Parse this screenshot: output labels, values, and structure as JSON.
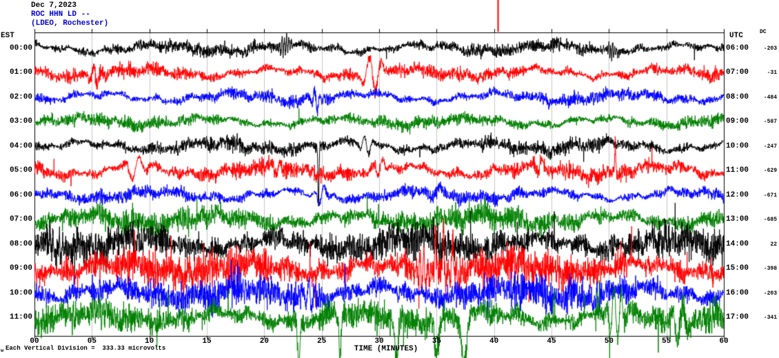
{
  "header": {
    "date": "Dec 7,2023",
    "station": "ROC HHN LD --",
    "network": "(LDEO, Rochester)",
    "date_color": "#000000",
    "station_color": "#0000cc",
    "network_color": "#0000cc"
  },
  "axes": {
    "left_header": "EST",
    "right_header": "UTC",
    "dc_header": "DC",
    "x_label": "TIME (MINUTES)",
    "x_ticks": [
      "00",
      "05",
      "10",
      "15",
      "20",
      "25",
      "30",
      "35",
      "40",
      "45",
      "50",
      "55",
      "60"
    ],
    "x_min": 0,
    "x_max": 60,
    "tick_interval_minutes": 5
  },
  "footer": {
    "mark": "w",
    "note": "Each Vertical Division =  333.33 microvolts"
  },
  "colors": {
    "background": "#ffffff",
    "border": "#000000",
    "grid": "#9a9a9a",
    "marker": "#ff0000"
  },
  "marker": {
    "x_minute": 40.35,
    "color": "#ff0000"
  },
  "chart_data": {
    "type": "line",
    "title": "ROC HHN LD -- (LDEO, Rochester) helicorder, Dec 7,2023",
    "xlabel": "TIME (MINUTES)",
    "x_range": [
      0,
      60
    ],
    "grid": "vertical every 5 minutes",
    "scale_note": "Each Vertical Division =  333.33 microvolts",
    "rows": [
      {
        "est": "00:00",
        "utc": "06:00",
        "dc": "-203",
        "color": "#000000",
        "viz": {
          "hf": 8,
          "lf": 4.5,
          "sp": 0.0008,
          "sa": 14,
          "events": [
            {
              "t": 21.8,
              "w": 0.5,
              "a": 14,
              "f": 5
            },
            {
              "t": 50.2,
              "w": 0.4,
              "a": 12,
              "f": 6
            }
          ]
        }
      },
      {
        "est": "01:00",
        "utc": "07:00",
        "dc": "-31",
        "color": "#ff0000",
        "viz": {
          "hf": 8.5,
          "lf": 5,
          "sp": 0.0008,
          "sa": 14,
          "events": [
            {
              "t": 29.4,
              "w": 0.9,
              "a": 27,
              "f": 0.9
            },
            {
              "t": 5.3,
              "w": 0.5,
              "a": 14,
              "f": 1.5
            }
          ]
        }
      },
      {
        "est": "02:00",
        "utc": "08:00",
        "dc": "-484",
        "color": "#0000ff",
        "viz": {
          "hf": 7.5,
          "lf": 5,
          "sp": 0.0006,
          "sa": 12,
          "events": [
            {
              "t": 24.5,
              "w": 0.4,
              "a": 16,
              "f": 2
            }
          ]
        }
      },
      {
        "est": "03:00",
        "utc": "09:00",
        "dc": "-587",
        "color": "#008000",
        "viz": {
          "hf": 8,
          "lf": 4.5,
          "sp": 0.0015,
          "sa": 16,
          "events": []
        }
      },
      {
        "est": "04:00",
        "utc": "10:00",
        "dc": "-247",
        "color": "#000000",
        "viz": {
          "hf": 9,
          "lf": 5,
          "sp": 0.001,
          "sa": 16,
          "events": [
            {
              "t": 24.72,
              "w": 0.07,
              "a": 85,
              "f": 0
            },
            {
              "t": 28.9,
              "w": 0.6,
              "a": 16,
              "f": 1.2
            }
          ]
        }
      },
      {
        "est": "05:00",
        "utc": "11:00",
        "dc": "-629",
        "color": "#ff0000",
        "viz": {
          "hf": 10,
          "lf": 6,
          "sp": 0.0012,
          "sa": 18,
          "events": [
            {
              "t": 50.55,
              "w": 0.06,
              "a": -48,
              "f": 0
            },
            {
              "t": 8.8,
              "w": 0.9,
              "a": -16,
              "f": 0.8
            },
            {
              "t": 21.2,
              "w": 0.5,
              "a": -14,
              "f": 1.2
            },
            {
              "t": 30.1,
              "w": 0.6,
              "a": -14,
              "f": 1.1
            },
            {
              "t": 44.0,
              "w": 0.5,
              "a": -12,
              "f": 1.3
            }
          ]
        }
      },
      {
        "est": "06:00",
        "utc": "12:00",
        "dc": "-671",
        "color": "#0000ff",
        "viz": {
          "hf": 8,
          "lf": 5,
          "sp": 0.0008,
          "sa": 14,
          "events": [
            {
              "t": 25.0,
              "w": 0.5,
              "a": -18,
              "f": 1.0
            },
            {
              "t": 35.0,
              "w": 1.2,
              "a": -10,
              "f": 0.7
            }
          ]
        }
      },
      {
        "est": "07:00",
        "utc": "13:00",
        "dc": "-685",
        "color": "#008000",
        "viz": {
          "hf": 15,
          "lf": 6,
          "sp": 0.003,
          "sa": 26,
          "events": []
        }
      },
      {
        "est": "08:00",
        "utc": "14:00",
        "dc": "22",
        "color": "#000000",
        "viz": {
          "hf": 22,
          "lf": 7,
          "sp": 0.004,
          "sa": 40,
          "events": []
        }
      },
      {
        "est": "09:00",
        "utc": "15:00",
        "dc": "-398",
        "color": "#ff0000",
        "viz": {
          "hf": 23,
          "lf": 7,
          "sp": 0.004,
          "sa": 45,
          "events": [
            {
              "t": 34.9,
              "w": 0.07,
              "a": -55,
              "f": 0
            },
            {
              "t": 35.6,
              "w": 0.06,
              "a": -70,
              "f": 0
            },
            {
              "t": 36.4,
              "w": 0.09,
              "a": -45,
              "f": 0
            },
            {
              "t": 33.8,
              "w": 0.6,
              "a": -25,
              "f": 3
            }
          ]
        }
      },
      {
        "est": "10:00",
        "utc": "16:00",
        "dc": "-203",
        "color": "#0000ff",
        "viz": {
          "hf": 20,
          "lf": 7,
          "sp": 0.004,
          "sa": 38,
          "events": [
            {
              "t": 24.0,
              "w": 0.5,
              "a": 20,
              "f": 2
            }
          ]
        }
      },
      {
        "est": "11:00",
        "utc": "17:00",
        "dc": "-341",
        "color": "#008000",
        "viz": {
          "hf": 18,
          "lf": 7,
          "sp": 0.0045,
          "sa": 42,
          "events": [
            {
              "t": 23.0,
              "w": 0.15,
              "a": 60,
              "f": 0
            },
            {
              "t": 26.6,
              "w": 0.12,
              "a": 68,
              "f": 0
            },
            {
              "t": 31.5,
              "w": 0.2,
              "a": 62,
              "f": 0
            },
            {
              "t": 37.4,
              "w": 0.3,
              "a": 70,
              "f": 0
            },
            {
              "t": 35.0,
              "w": 0.25,
              "a": 55,
              "f": 0
            },
            {
              "t": 50.6,
              "w": 0.8,
              "a": 40,
              "f": 1.5
            },
            {
              "t": 56.2,
              "w": 0.8,
              "a": -26,
              "f": 1.0
            }
          ]
        }
      }
    ]
  }
}
